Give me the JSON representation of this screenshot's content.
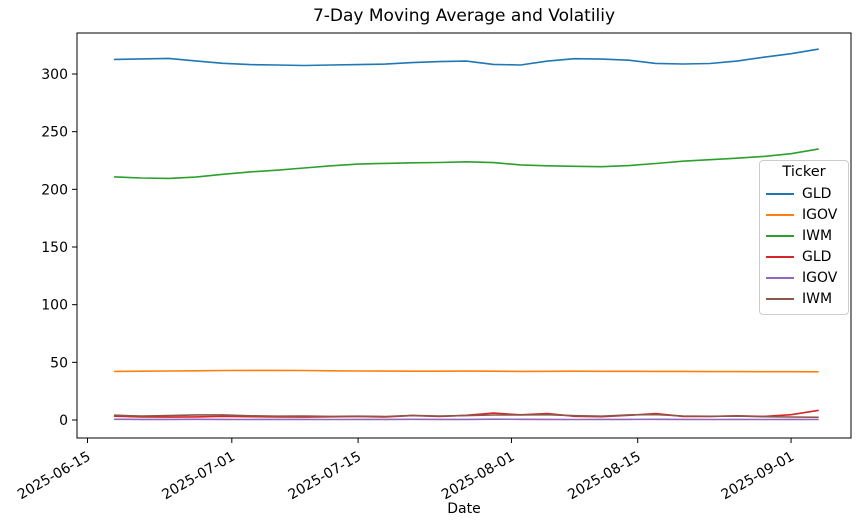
{
  "chart_data": {
    "type": "line",
    "title": "7-Day Moving Average and Volatiliy",
    "xlabel": "Date",
    "ylabel": "",
    "legend_title": "Ticker",
    "legend_position": "center right",
    "grid": false,
    "ylim": [
      -16,
      336
    ],
    "yticks": [
      0,
      50,
      100,
      150,
      200,
      250,
      300
    ],
    "xlim": [
      "2025-06-14",
      "2025-09-07"
    ],
    "xticks": [
      "2025-06-15",
      "2025-07-01",
      "2025-07-15",
      "2025-08-01",
      "2025-08-15",
      "2025-09-01"
    ],
    "x": [
      "2025-06-18",
      "2025-06-21",
      "2025-06-24",
      "2025-06-27",
      "2025-06-30",
      "2025-07-03",
      "2025-07-06",
      "2025-07-09",
      "2025-07-12",
      "2025-07-15",
      "2025-07-18",
      "2025-07-21",
      "2025-07-24",
      "2025-07-27",
      "2025-07-30",
      "2025-08-02",
      "2025-08-05",
      "2025-08-08",
      "2025-08-11",
      "2025-08-14",
      "2025-08-17",
      "2025-08-20",
      "2025-08-23",
      "2025-08-26",
      "2025-08-29",
      "2025-09-01",
      "2025-09-04"
    ],
    "series": [
      {
        "id": "gld-ma",
        "name": "GLD",
        "measure": "7-day moving average",
        "color": "#1f77b4",
        "values": [
          312.7,
          313.1,
          313.5,
          311.4,
          309.3,
          308.2,
          307.8,
          307.4,
          307.8,
          308.2,
          308.6,
          309.9,
          310.8,
          311.2,
          308.3,
          307.8,
          311.2,
          313.3,
          312.9,
          312.0,
          309.2,
          308.7,
          309.1,
          311.2,
          314.6,
          317.6,
          321.5
        ]
      },
      {
        "id": "igov-ma",
        "name": "IGOV",
        "measure": "7-day moving average",
        "color": "#ff7f0e",
        "values": [
          42.1,
          42.3,
          42.5,
          42.7,
          42.9,
          43.0,
          43.0,
          42.9,
          42.7,
          42.5,
          42.4,
          42.3,
          42.3,
          42.4,
          42.3,
          42.1,
          42.2,
          42.3,
          42.2,
          42.2,
          42.1,
          42.1,
          42.0,
          42.0,
          41.9,
          41.9,
          41.8
        ]
      },
      {
        "id": "iwm-ma",
        "name": "IWM",
        "measure": "7-day moving average",
        "color": "#2ca02c",
        "values": [
          210.8,
          209.8,
          209.5,
          210.6,
          213.0,
          215.1,
          216.6,
          218.5,
          220.4,
          221.9,
          222.5,
          223.0,
          223.3,
          223.9,
          223.2,
          221.2,
          220.4,
          220.0,
          219.6,
          220.6,
          222.4,
          224.4,
          225.7,
          227.0,
          228.6,
          230.9,
          234.9
        ]
      },
      {
        "id": "gld-vol",
        "name": "GLD",
        "measure": "volatility",
        "color": "#d62728",
        "values": [
          3.3,
          2.7,
          2.5,
          2.7,
          3.2,
          2.9,
          2.6,
          2.5,
          2.8,
          3.0,
          2.6,
          3.8,
          3.0,
          4.1,
          6.0,
          4.5,
          5.6,
          3.2,
          2.9,
          4.1,
          5.6,
          3.1,
          3.0,
          3.6,
          3.1,
          4.6,
          8.3
        ]
      },
      {
        "id": "igov-vol",
        "name": "IGOV",
        "measure": "volatility",
        "color": "#9467bd",
        "values": [
          0.6,
          0.5,
          0.5,
          0.6,
          0.5,
          0.4,
          0.5,
          0.5,
          0.4,
          0.5,
          0.5,
          0.6,
          0.5,
          0.5,
          0.7,
          0.6,
          0.5,
          0.4,
          0.5,
          0.5,
          0.6,
          0.5,
          0.4,
          0.5,
          0.4,
          0.5,
          0.4
        ]
      },
      {
        "id": "iwm-vol",
        "name": "IWM",
        "measure": "volatility",
        "color": "#8c564b",
        "values": [
          4.2,
          3.4,
          3.8,
          4.4,
          4.4,
          3.6,
          3.3,
          3.4,
          3.1,
          3.3,
          3.0,
          4.0,
          3.4,
          3.8,
          4.3,
          4.4,
          4.6,
          3.7,
          3.3,
          4.4,
          4.7,
          3.5,
          3.2,
          3.4,
          2.9,
          2.6,
          2.3
        ]
      }
    ]
  }
}
